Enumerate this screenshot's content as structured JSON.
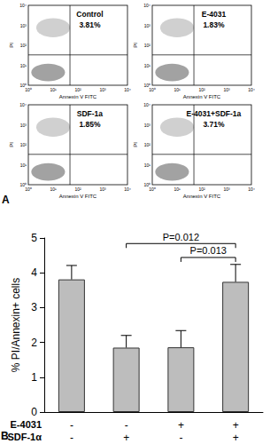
{
  "panel_a": {
    "panel_label": "A",
    "x_label": "Annexin V FITC",
    "y_label": "PI",
    "axis_ticks": [
      "10⁰",
      "10¹",
      "10²",
      "10³",
      "10⁴"
    ],
    "plots": [
      {
        "title": "Control",
        "percent": "3.81%"
      },
      {
        "title": "E-4031",
        "percent": "1.83%"
      },
      {
        "title": "SDF-1a",
        "percent": "1.85%"
      },
      {
        "title": "E-4031+SDF-1a",
        "percent": "3.71%"
      }
    ]
  },
  "chart_data": {
    "type": "bar",
    "panel_label": "B",
    "categories": [
      null,
      null,
      null,
      null
    ],
    "conditions": [
      {
        "name": "E-4031",
        "signs": [
          "-",
          "-",
          "+",
          "+"
        ]
      },
      {
        "name": "SDF-1α",
        "signs": [
          "-",
          "+",
          "-",
          "+"
        ]
      }
    ],
    "values": [
      3.81,
      1.85,
      1.86,
      3.74
    ],
    "errors": [
      0.4,
      0.35,
      0.48,
      0.5
    ],
    "color": "#bdbdbd",
    "y_label": "% PI/Annexin+ cells",
    "ylim": [
      0,
      5
    ],
    "yticks": [
      0,
      1,
      2,
      3,
      4,
      5
    ],
    "grid": false,
    "comparisons": [
      {
        "between": [
          1,
          3
        ],
        "label": "P=0.012"
      },
      {
        "between": [
          2,
          3
        ],
        "label": "P=0.013"
      }
    ]
  }
}
